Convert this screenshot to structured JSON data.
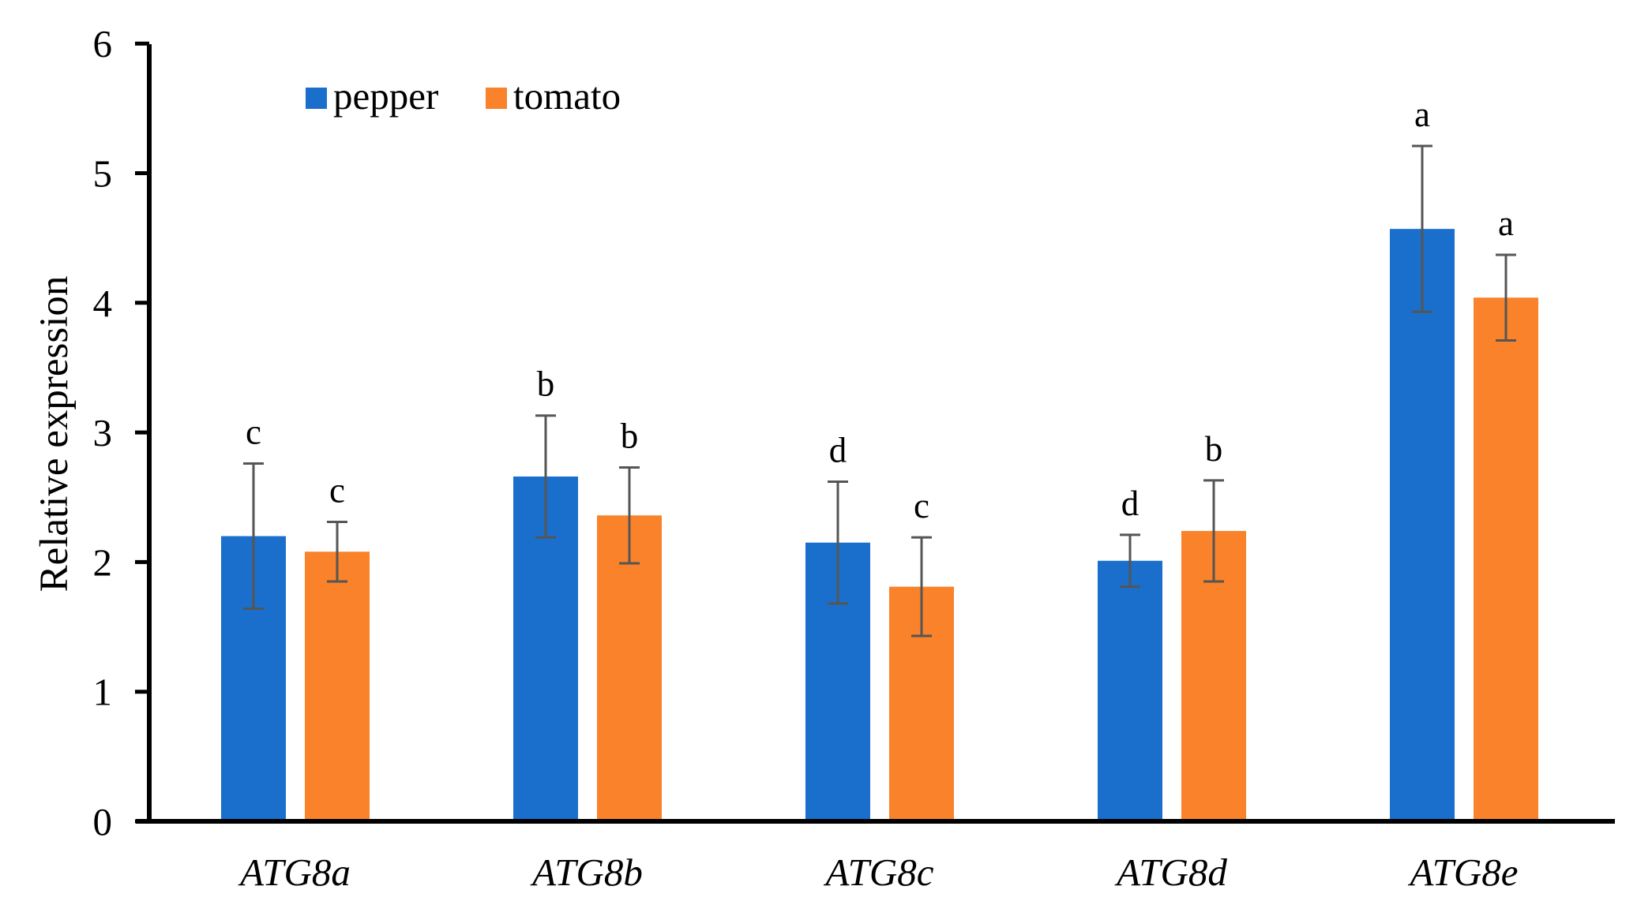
{
  "chart_data": {
    "type": "bar",
    "title": "",
    "xlabel": "",
    "ylabel": "Relative expression",
    "ylim": [
      0,
      6
    ],
    "yticks": [
      0,
      1,
      2,
      3,
      4,
      5,
      6
    ],
    "grid": false,
    "legend_position": "top-left",
    "categories": [
      "ATG8a",
      "ATG8b",
      "ATG8c",
      "ATG8d",
      "ATG8e"
    ],
    "series": [
      {
        "name": "pepper",
        "color": "#1a6fcc",
        "values": [
          2.2,
          2.66,
          2.15,
          2.01,
          4.57
        ],
        "errors": [
          0.56,
          0.47,
          0.47,
          0.2,
          0.64
        ],
        "labels": [
          "c",
          "b",
          "d",
          "d",
          "a"
        ]
      },
      {
        "name": "tomato",
        "color": "#f9822a",
        "values": [
          2.08,
          2.36,
          1.81,
          2.24,
          4.04
        ],
        "errors": [
          0.23,
          0.37,
          0.38,
          0.39,
          0.33
        ],
        "labels": [
          "c",
          "b",
          "c",
          "b",
          "a"
        ]
      }
    ]
  }
}
